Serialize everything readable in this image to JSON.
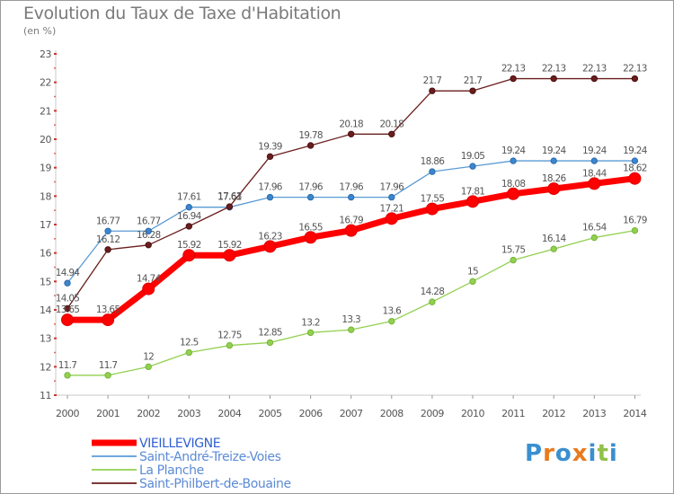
{
  "chart_data": {
    "type": "line",
    "title": "Evolution du Taux de Taxe d'Habitation",
    "subtitle": "(en %)",
    "x": [
      "2000",
      "2001",
      "2002",
      "2003",
      "2004",
      "2005",
      "2006",
      "2007",
      "2008",
      "2009",
      "2010",
      "2011",
      "2012",
      "2013",
      "2014"
    ],
    "ylim": [
      11,
      23
    ],
    "yticks": [
      11,
      12,
      13,
      14,
      15,
      16,
      17,
      18,
      19,
      20,
      21,
      22,
      23
    ],
    "grid": false,
    "legend_position": "bottom-left",
    "series": [
      {
        "name": "VIEILLEVIGNE",
        "color": "#ff0000",
        "values": [
          13.65,
          13.65,
          14.74,
          15.92,
          15.92,
          16.23,
          16.55,
          16.79,
          17.21,
          17.55,
          17.81,
          18.08,
          18.26,
          18.44,
          18.62
        ]
      },
      {
        "name": "Saint-André-Treize-Voies",
        "color": "#5b9bd5",
        "values": [
          14.94,
          16.77,
          16.77,
          17.61,
          17.61,
          17.96,
          17.96,
          17.96,
          17.96,
          18.86,
          19.05,
          19.24,
          19.24,
          19.24,
          19.24
        ]
      },
      {
        "name": "La Planche",
        "color": "#92d050",
        "values": [
          11.7,
          11.7,
          12,
          12.5,
          12.75,
          12.85,
          13.2,
          13.3,
          13.6,
          14.28,
          15,
          15.75,
          16.14,
          16.54,
          16.79
        ]
      },
      {
        "name": "Saint-Philbert-de-Bouaine",
        "color": "#6b1d1d",
        "values": [
          14.05,
          16.12,
          16.28,
          16.94,
          17.63,
          19.39,
          19.78,
          20.18,
          20.18,
          21.7,
          21.7,
          22.13,
          22.13,
          22.13,
          22.13
        ]
      }
    ],
    "labels_text": {
      "VIEILLEVIGNE": [
        "13.65",
        "13.65",
        "14.74",
        "15.92",
        "15.92",
        "16.23",
        "16.55",
        "16.79",
        "17.21",
        "17.55",
        "17.81",
        "18.08",
        "18.26",
        "18.44",
        "18.62"
      ],
      "Saint-André-Treize-Voies": [
        "14.94",
        "16.77",
        "16.77",
        "17.61",
        "17.61",
        "17.96",
        "17.96",
        "17.96",
        "17.96",
        "18.86",
        "19.05",
        "19.24",
        "19.24",
        "19.24",
        "19.24"
      ],
      "La Planche": [
        "11.7",
        "11.7",
        "12",
        "12.5",
        "12.75",
        "12.85",
        "13.2",
        "13.3",
        "13.6",
        "14.28",
        "15",
        "15.75",
        "16.14",
        "16.54",
        "16.79"
      ],
      "Saint-Philbert-de-Bouaine": [
        "14.05",
        "16.12",
        "16.28",
        "16.94",
        "17.63",
        "19.39",
        "19.78",
        "20.18",
        "20.18",
        "21.7",
        "21.7",
        "22.13",
        "22.13",
        "22.13",
        "22.13"
      ]
    }
  },
  "logo": {
    "text": "Proxiti",
    "colors": [
      "#3a8fd0",
      "#e87a1e",
      "#3a8fd0",
      "#e87a1e",
      "#3a8fd0",
      "#92c04a",
      "#3a8fd0"
    ]
  }
}
